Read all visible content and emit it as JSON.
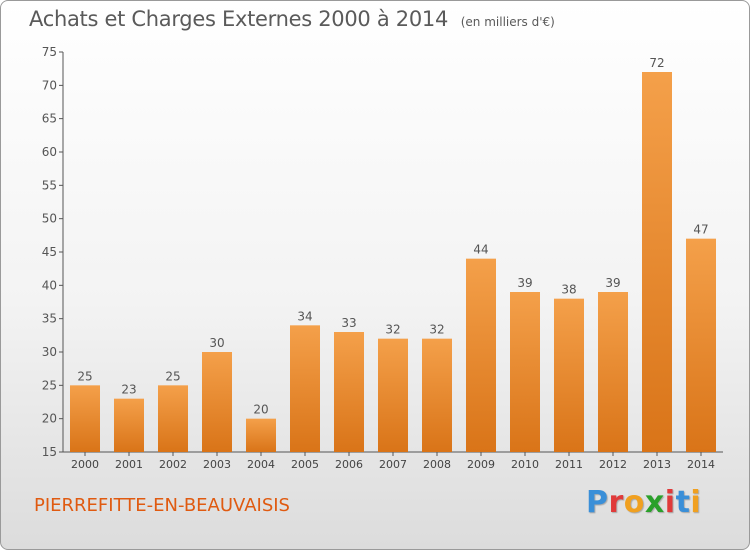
{
  "chart_data": {
    "type": "bar",
    "title": "Achats et Charges Externes 2000 à 2014",
    "subtitle": "(en milliers d'€)",
    "categories": [
      "2000",
      "2001",
      "2002",
      "2003",
      "2004",
      "2005",
      "2006",
      "2007",
      "2008",
      "2009",
      "2010",
      "2011",
      "2012",
      "2013",
      "2014"
    ],
    "values": [
      25,
      23,
      25,
      30,
      20,
      34,
      33,
      32,
      32,
      44,
      39,
      38,
      39,
      72,
      47
    ],
    "ylim": [
      15,
      75
    ],
    "yticks": [
      15,
      20,
      25,
      30,
      35,
      40,
      45,
      50,
      55,
      60,
      65,
      70,
      75
    ],
    "grid": false,
    "bar_color": "#f4a04a",
    "bar_color_dark": "#d97418"
  },
  "footer": {
    "commune": "PIERREFITTE-EN-BEAUVAISIS",
    "logo_letters": [
      {
        "ch": "P",
        "color": "#3a8fd8"
      },
      {
        "ch": "r",
        "color": "#e03a3a"
      },
      {
        "ch": "o",
        "color": "#f0a020"
      },
      {
        "ch": "x",
        "color": "#2aa02a"
      },
      {
        "ch": "i",
        "color": "#e03a3a"
      },
      {
        "ch": "t",
        "color": "#3a8fd8"
      },
      {
        "ch": "i",
        "color": "#f0a020"
      }
    ]
  }
}
